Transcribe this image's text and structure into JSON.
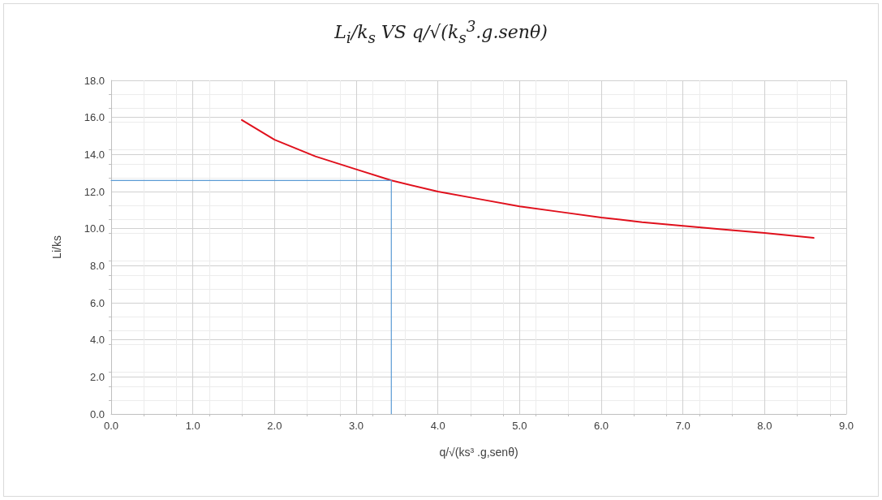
{
  "chart_data": {
    "type": "line",
    "title": "L$_{i}$/k$_{s}$ VS q/√(k$_{s}$$^{3}$.g.senθ)",
    "xlabel": "q/√(ks³ .g,senθ)",
    "ylabel": "Li/ks",
    "xlim": [
      0,
      9
    ],
    "xticks": [
      {
        "value": 0,
        "label": "0.0"
      },
      {
        "value": 1,
        "label": "1.0"
      },
      {
        "value": 2,
        "label": "2.0"
      },
      {
        "value": 3,
        "label": "3.0"
      },
      {
        "value": 4,
        "label": "4.0"
      },
      {
        "value": 5,
        "label": "5.0"
      },
      {
        "value": 6,
        "label": "6.0"
      },
      {
        "value": 7,
        "label": "7.0"
      },
      {
        "value": 8,
        "label": "8.0"
      },
      {
        "value": 9,
        "label": "9.0"
      }
    ],
    "ylim": [
      0,
      18
    ],
    "yticks": [
      {
        "value": 0,
        "label": "0.0"
      },
      {
        "value": 2,
        "label": "2.0"
      },
      {
        "value": 4,
        "label": "4.0"
      },
      {
        "value": 6,
        "label": "6.0"
      },
      {
        "value": 8,
        "label": "8.0"
      },
      {
        "value": 10,
        "label": "10.0"
      },
      {
        "value": 12,
        "label": "12.0"
      },
      {
        "value": 14,
        "label": "14.0"
      },
      {
        "value": 16,
        "label": "16.0"
      },
      {
        "value": 18,
        "label": "18.0"
      }
    ],
    "grid": true,
    "marker": "none",
    "line_style": "solid",
    "series": [
      {
        "color": "#e0101c",
        "x": [
          1.6,
          2,
          2.5,
          3,
          3.43,
          4,
          4.5,
          5,
          5.5,
          6,
          6.5,
          7,
          7.5,
          8,
          8.6
        ],
        "values": [
          15.86,
          14.8,
          13.9,
          13.2,
          12.6,
          12.0,
          11.6,
          11.2,
          10.9,
          10.6,
          10.35,
          10.15,
          9.95,
          9.77,
          9.5
        ]
      },
      {
        "color": "#5b9bd5",
        "x": [
          0,
          3.43,
          3.43
        ],
        "values": [
          12.6,
          12.6,
          0
        ]
      }
    ]
  }
}
